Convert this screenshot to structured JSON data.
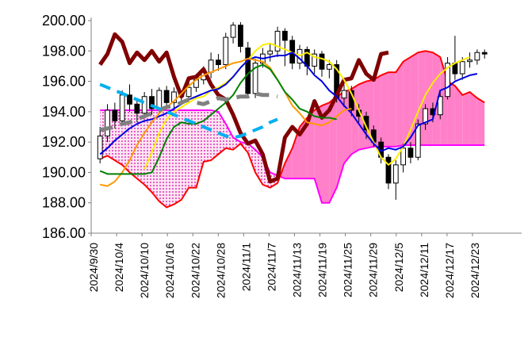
{
  "chart_data": {
    "type": "candlestick",
    "title": "",
    "xlabel": "",
    "ylabel": "",
    "ylim": [
      186,
      200
    ],
    "yticks": [
      "186.00",
      "188.00",
      "190.00",
      "192.00",
      "194.00",
      "196.00",
      "198.00",
      "200.00"
    ],
    "grid": false,
    "legend": "none",
    "x_date_range": [
      "2024/9/30",
      "2024/12/27"
    ],
    "x_tick_labels": [
      "2024/9/30",
      "2024/10/4",
      "2024/10/10",
      "2024/10/16",
      "2024/10/22",
      "2024/10/28",
      "2024/11/1",
      "2024/11/7",
      "2024/11/13",
      "2024/11/19",
      "2024/11/25",
      "2024/11/29",
      "2024/12/5",
      "2024/12/11",
      "2024/12/17",
      "2024/12/23"
    ],
    "candles": [
      [
        190.9,
        192.4,
        190.6,
        193.0
      ],
      [
        192.4,
        194.1,
        192.0,
        194.5
      ],
      [
        194.1,
        193.4,
        192.9,
        194.6
      ],
      [
        193.4,
        195.1,
        193.1,
        195.4
      ],
      [
        195.1,
        194.5,
        194.0,
        195.8
      ],
      [
        194.5,
        193.9,
        193.3,
        194.9
      ],
      [
        193.9,
        195.0,
        193.6,
        195.3
      ],
      [
        195.0,
        194.2,
        193.8,
        195.5
      ],
      [
        194.2,
        195.4,
        193.9,
        195.6
      ],
      [
        195.4,
        194.6,
        194.3,
        195.7
      ],
      [
        194.6,
        195.3,
        194.2,
        195.6
      ],
      [
        195.3,
        195.0,
        194.6,
        195.4
      ],
      [
        195.0,
        195.6,
        194.7,
        196.0
      ],
      [
        195.6,
        196.1,
        195.3,
        196.5
      ],
      [
        196.1,
        196.6,
        195.8,
        197.0
      ],
      [
        196.6,
        197.4,
        196.2,
        197.9
      ],
      [
        197.4,
        197.1,
        196.7,
        197.8
      ],
      [
        197.1,
        198.9,
        196.8,
        199.2
      ],
      [
        198.9,
        199.7,
        198.5,
        199.9
      ],
      [
        199.7,
        198.3,
        197.9,
        199.9
      ],
      [
        198.2,
        195.2,
        194.9,
        198.6
      ],
      [
        195.2,
        197.2,
        194.9,
        197.5
      ],
      [
        197.2,
        197.8,
        196.9,
        198.2
      ],
      [
        197.8,
        198.0,
        197.3,
        198.5
      ],
      [
        198.0,
        199.3,
        197.6,
        199.6
      ],
      [
        199.3,
        198.7,
        197.0,
        199.5
      ],
      [
        198.7,
        197.2,
        196.8,
        199.0
      ],
      [
        197.2,
        198.1,
        196.8,
        198.4
      ],
      [
        198.1,
        197.0,
        196.4,
        198.3
      ],
      [
        197.0,
        197.8,
        196.5,
        198.1
      ],
      [
        197.8,
        196.8,
        196.3,
        198.0
      ],
      [
        196.8,
        197.1,
        196.2,
        197.4
      ],
      [
        197.1,
        194.9,
        194.6,
        197.4
      ],
      [
        194.9,
        195.4,
        194.3,
        195.8
      ],
      [
        195.4,
        194.1,
        193.7,
        195.7
      ],
      [
        194.1,
        193.7,
        193.3,
        194.5
      ],
      [
        193.7,
        192.8,
        192.2,
        194.0
      ],
      [
        192.8,
        192.0,
        191.7,
        193.1
      ],
      [
        192.0,
        191.0,
        190.6,
        192.3
      ],
      [
        191.0,
        189.3,
        188.9,
        191.2
      ],
      [
        189.3,
        190.5,
        188.2,
        190.8
      ],
      [
        190.5,
        191.6,
        190.0,
        191.9
      ],
      [
        191.6,
        191.0,
        190.6,
        192.0
      ],
      [
        191.0,
        193.2,
        190.8,
        193.5
      ],
      [
        193.2,
        194.2,
        192.8,
        194.5
      ],
      [
        194.2,
        193.8,
        193.3,
        194.6
      ],
      [
        193.8,
        195.0,
        193.5,
        195.3
      ],
      [
        195.0,
        197.2,
        194.8,
        197.6
      ],
      [
        197.2,
        196.5,
        196.1,
        199.0
      ],
      [
        196.5,
        197.3,
        196.1,
        197.6
      ],
      [
        197.3,
        197.4,
        196.9,
        197.9
      ],
      [
        197.4,
        197.9,
        197.1,
        198.1
      ],
      [
        197.9,
        197.8,
        197.5,
        198.1
      ]
    ],
    "series": [
      {
        "color": "#7f0000",
        "width": 5,
        "dash": "",
        "values": [
          197.1,
          197.8,
          199.1,
          198.6,
          197.2,
          197.9,
          197.4,
          198.0,
          197.3,
          197.9,
          196.3,
          195.0,
          196.2,
          196.3,
          196.8,
          195.8,
          195.1,
          194.8,
          193.8,
          192.6,
          191.9,
          192.1,
          191.2,
          189.4,
          189.6,
          192.3,
          193.0,
          192.5,
          193.2,
          194.7,
          193.6,
          194.1,
          195.1,
          196.1,
          196.2,
          197.4,
          196.5,
          196.1,
          197.8,
          197.9
        ]
      },
      {
        "color": "#ffee00",
        "width": 2,
        "dash": "",
        "values": [
          190.2,
          191.3,
          192.6,
          193.5,
          194.0,
          194.3,
          194.6,
          194.9,
          195.0,
          195.4,
          195.6,
          195.9,
          196.3,
          196.9,
          197.4,
          198.0,
          198.4,
          198.5,
          198.3,
          198.1,
          197.9,
          197.7,
          197.9,
          197.6,
          197.5,
          197.3,
          196.8,
          196.1,
          195.2,
          194.1,
          193.0,
          192.0,
          191.0,
          190.5,
          190.9,
          191.7,
          192.8,
          194.0,
          195.1,
          195.9,
          196.5,
          196.9,
          197.2,
          197.4,
          197.6
        ]
      },
      {
        "color": "#0000e0",
        "width": 2,
        "dash": "",
        "values": [
          191.2,
          191.6,
          192.1,
          192.5,
          192.9,
          193.2,
          193.4,
          193.5,
          193.7,
          193.9,
          194.2,
          194.5,
          194.8,
          195.0,
          195.2,
          195.4,
          195.5,
          195.8,
          196.3,
          196.9,
          197.4,
          197.6,
          197.5,
          197.6,
          197.7,
          197.7,
          197.9,
          197.5,
          197.0,
          196.4,
          196.0,
          195.4,
          195.0,
          194.4,
          193.9,
          193.2,
          192.5,
          191.9,
          191.4,
          191.6,
          191.5,
          191.7,
          192.3,
          193.1,
          193.3,
          193.5,
          195.4,
          195.6,
          196.0,
          196.2,
          196.4,
          196.5
        ]
      },
      {
        "color": "#ff9900",
        "width": 2,
        "dash": "",
        "values": [
          189.2,
          189.1,
          189.4,
          190.0,
          190.8,
          191.8,
          192.6,
          193.3,
          193.9,
          194.3,
          194.7,
          195.2,
          195.7,
          196.1,
          196.4,
          196.6,
          196.8,
          197.0,
          197.2,
          197.3,
          197.5,
          197.4,
          197.3,
          196.9,
          196.1,
          195.3,
          194.4,
          193.9,
          193.3,
          193.2,
          193.1,
          193.3,
          193.7,
          194.1,
          194.2
        ]
      },
      {
        "color": "#008000",
        "width": 2,
        "dash": "",
        "values": [
          190.1,
          189.9,
          189.9,
          189.9,
          189.9,
          189.9,
          189.9,
          190.0,
          191.0,
          192.2,
          193.0,
          193.3,
          193.2,
          193.2,
          193.4,
          193.8,
          194.2,
          194.6,
          195.1,
          195.9,
          196.5,
          196.9,
          197.1,
          196.8,
          196.1,
          195.3,
          194.8,
          194.2,
          194.0,
          193.7,
          193.6,
          193.6,
          193.5
        ]
      },
      {
        "color": "#808080",
        "width": 5,
        "dash": "16 10",
        "values": [
          192.8,
          192.9,
          193.0,
          193.2,
          193.3,
          193.5,
          193.7,
          193.9,
          194.1,
          194.3,
          194.4,
          194.6,
          194.8,
          194.6,
          194.5,
          194.7,
          194.9,
          194.8,
          194.9,
          195.0,
          195.0,
          195.2,
          195.1,
          195.1,
          195.0
        ]
      },
      {
        "color": "#00b0f0",
        "width": 4,
        "dash": "14 9",
        "values": [
          195.8,
          195.6,
          195.4,
          195.2,
          195.0,
          194.8,
          194.6,
          194.4,
          194.2,
          194.0,
          193.8,
          193.6,
          193.4,
          193.2,
          193.0,
          192.8,
          192.6,
          192.4,
          192.3,
          192.4,
          192.6,
          192.8,
          193.0,
          193.3,
          193.5
        ]
      }
    ],
    "cloud_colors": {
      "red_span": "#ff0000",
      "magenta_span": "#ff00ff",
      "fill": "#ff80c8",
      "dots": "#cc00aa"
    }
  }
}
